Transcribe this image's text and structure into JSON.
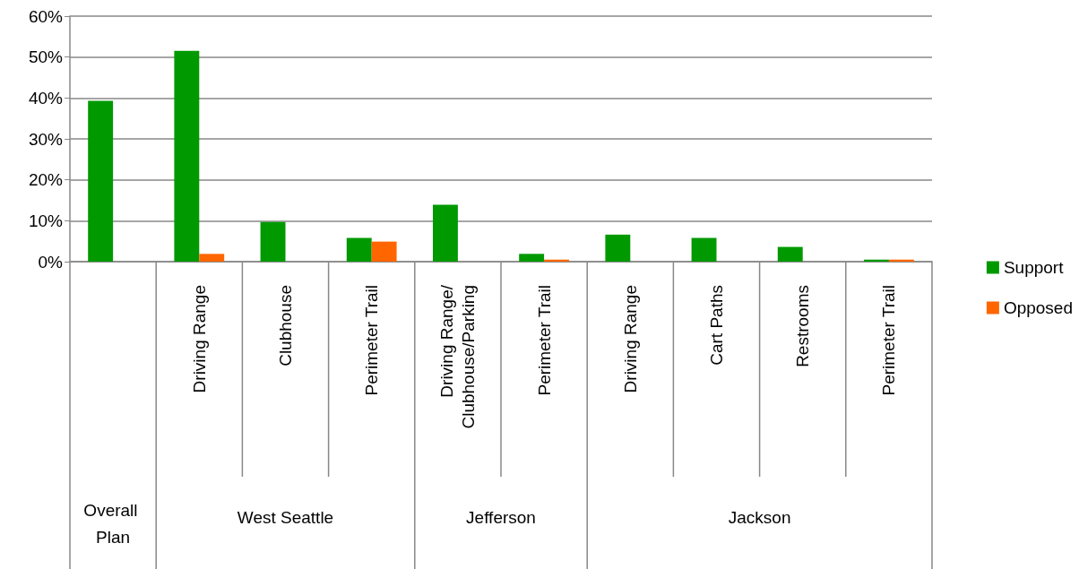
{
  "chart_data": {
    "type": "bar",
    "categories": [
      null,
      "Driving Range",
      "Clubhouse",
      "Perimeter Trail",
      "Driving Range/\nClubhouse/Parking",
      "Perimeter Trail",
      "Driving Range",
      "Cart Paths",
      "Restrooms",
      "Perimeter Trail"
    ],
    "series": [
      {
        "name": "Support",
        "color": "#009900",
        "values": [
          39.3,
          51.5,
          9.7,
          5.8,
          13.9,
          1.9,
          6.6,
          5.8,
          3.6,
          0.5
        ]
      },
      {
        "name": "Opposed",
        "color": "#ff6600",
        "values": [
          0,
          1.9,
          0,
          4.9,
          0,
          0.5,
          0,
          0,
          0,
          0.5
        ]
      }
    ],
    "annotations": [
      "Overall Plan",
      "West Seattle",
      "Jefferson",
      "Jackson"
    ],
    "ylim": [
      0,
      60
    ],
    "yticks": [
      {
        "value": 0,
        "label": "0%"
      },
      {
        "value": 10,
        "label": "10%"
      },
      {
        "value": 20,
        "label": "20%"
      },
      {
        "value": 30,
        "label": "30%"
      },
      {
        "value": 40,
        "label": "40%"
      },
      {
        "value": 50,
        "label": "50%"
      },
      {
        "value": 60,
        "label": "60%"
      }
    ],
    "grid": "y",
    "legend": "right"
  }
}
